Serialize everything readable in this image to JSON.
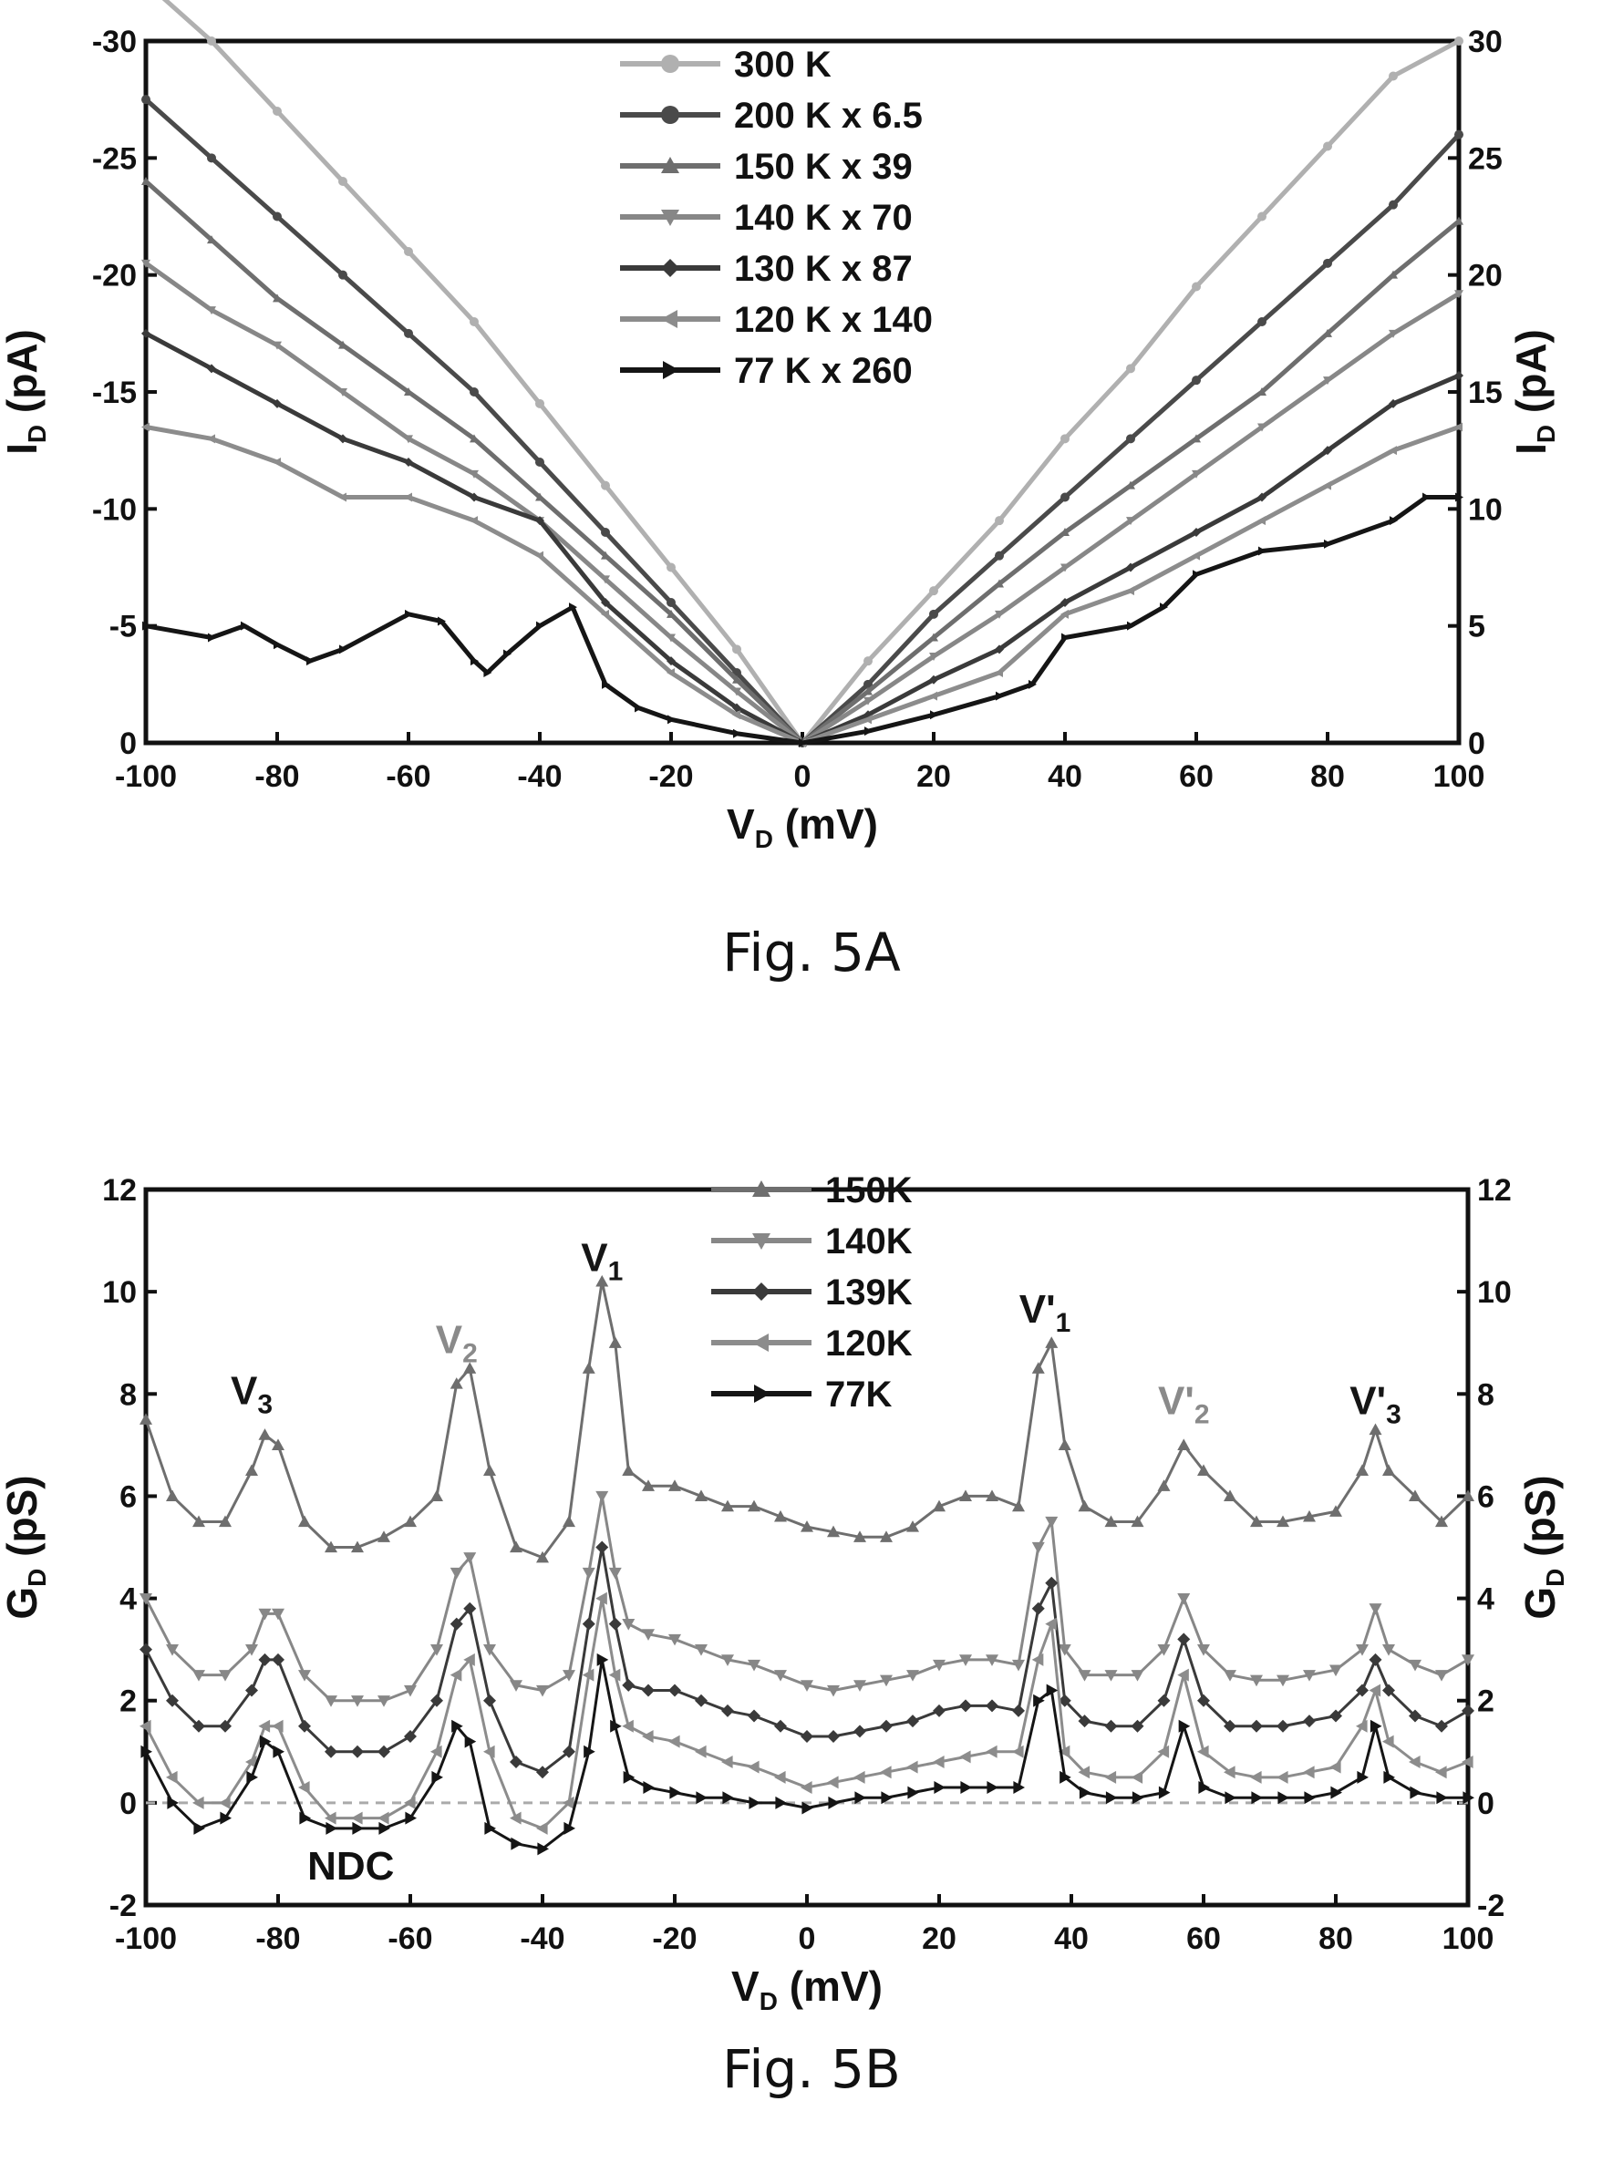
{
  "colors": {
    "c300": "#b0b0b0",
    "c200": "#4a4a4a",
    "c150": "#6e6e6e",
    "c140": "#878787",
    "c130": "#3a3a3a",
    "c120": "#8c8c8c",
    "c77": "#151515",
    "axis": "#111111"
  },
  "chart_data": [
    {
      "type": "line",
      "caption": "Fig. 5A",
      "xlabel": {
        "main": "V",
        "sub": "D",
        "rest": " (mV)"
      },
      "ylabel_left": {
        "main": "I",
        "sub": "D",
        "rest": " (pA)"
      },
      "ylabel_right": {
        "main": "I",
        "sub": "D",
        "rest": " (pA)"
      },
      "xlim": [
        -100,
        100
      ],
      "ylim": [
        0,
        30
      ],
      "xticks": [
        "-100",
        "-80",
        "-60",
        "-40",
        "-20",
        "0",
        "20",
        "40",
        "60",
        "80",
        "100"
      ],
      "yticks_left": [
        "0",
        "-5",
        "-10",
        "-15",
        "-20",
        "-25",
        "-30"
      ],
      "yticks_right": [
        "0",
        "5",
        "10",
        "15",
        "20",
        "25",
        "30"
      ],
      "legend_position": "top-center",
      "series": [
        {
          "name": "300 K",
          "marker": "circle",
          "color": "#b0b0b0",
          "x": [
            -100,
            -90,
            -80,
            -70,
            -60,
            -50,
            -40,
            -30,
            -20,
            -10,
            0,
            10,
            20,
            30,
            40,
            50,
            60,
            70,
            80,
            90,
            100
          ],
          "y": [
            32.5,
            30,
            27,
            24,
            21,
            18,
            14.5,
            11,
            7.5,
            4,
            0,
            3.5,
            6.5,
            9.5,
            13,
            16,
            19.5,
            22.5,
            25.5,
            28.5,
            30
          ]
        },
        {
          "name": "200 K x  6.5",
          "marker": "circle",
          "color": "#4a4a4a",
          "x": [
            -100,
            -90,
            -80,
            -70,
            -60,
            -50,
            -40,
            -30,
            -20,
            -10,
            0,
            10,
            20,
            30,
            40,
            50,
            60,
            70,
            80,
            90,
            100
          ],
          "y": [
            27.5,
            25,
            22.5,
            20,
            17.5,
            15,
            12,
            9,
            6,
            3,
            0,
            2.5,
            5.5,
            8,
            10.5,
            13,
            15.5,
            18,
            20.5,
            23,
            26
          ]
        },
        {
          "name": "150 K x  39",
          "marker": "triangle-up",
          "color": "#6e6e6e",
          "x": [
            -100,
            -90,
            -80,
            -70,
            -60,
            -50,
            -40,
            -30,
            -20,
            -10,
            0,
            10,
            20,
            30,
            40,
            50,
            60,
            70,
            80,
            90,
            100
          ],
          "y": [
            24,
            21.5,
            19,
            17,
            15,
            13,
            10.5,
            8,
            5.5,
            2.7,
            0,
            2.2,
            4.5,
            6.8,
            9,
            11,
            13,
            15,
            17.5,
            20,
            22.3
          ]
        },
        {
          "name": "140 K x  70",
          "marker": "triangle-down",
          "color": "#878787",
          "x": [
            -100,
            -90,
            -80,
            -70,
            -60,
            -50,
            -40,
            -30,
            -20,
            -10,
            0,
            10,
            20,
            30,
            40,
            50,
            60,
            70,
            80,
            90,
            100
          ],
          "y": [
            20.5,
            18.5,
            17,
            15,
            13,
            11.5,
            9.5,
            7,
            4.5,
            2.2,
            0,
            1.8,
            3.7,
            5.5,
            7.5,
            9.5,
            11.5,
            13.5,
            15.5,
            17.5,
            19.2
          ]
        },
        {
          "name": "130 K x  87",
          "marker": "diamond",
          "color": "#3a3a3a",
          "x": [
            -100,
            -90,
            -80,
            -70,
            -60,
            -50,
            -40,
            -30,
            -20,
            -10,
            0,
            10,
            20,
            30,
            40,
            50,
            60,
            70,
            80,
            90,
            100
          ],
          "y": [
            17.5,
            16,
            14.5,
            13,
            12,
            10.5,
            9.5,
            6,
            3.5,
            1.5,
            0,
            1.2,
            2.7,
            4,
            6,
            7.5,
            9,
            10.5,
            12.5,
            14.5,
            15.7
          ]
        },
        {
          "name": "120 K x 140",
          "marker": "triangle-left",
          "color": "#8c8c8c",
          "x": [
            -100,
            -90,
            -80,
            -70,
            -60,
            -50,
            -40,
            -30,
            -20,
            -10,
            0,
            10,
            20,
            30,
            40,
            50,
            60,
            70,
            80,
            90,
            100
          ],
          "y": [
            13.5,
            13,
            12,
            10.5,
            10.5,
            9.5,
            8,
            5.5,
            3,
            1.2,
            0,
            1,
            2,
            3,
            5.5,
            6.5,
            8,
            9.5,
            11,
            12.5,
            13.5
          ]
        },
        {
          "name": "77 K x 260",
          "marker": "triangle-right",
          "color": "#151515",
          "x": [
            -100,
            -90,
            -85,
            -80,
            -75,
            -70,
            -60,
            -55,
            -50,
            -48,
            -45,
            -40,
            -35,
            -30,
            -25,
            -20,
            -10,
            0,
            10,
            20,
            30,
            35,
            40,
            50,
            55,
            60,
            70,
            80,
            90,
            95,
            100
          ],
          "y": [
            5,
            4.5,
            5,
            4.2,
            3.5,
            4,
            5.5,
            5.2,
            3.5,
            3,
            3.8,
            5,
            5.8,
            2.5,
            1.5,
            1,
            0.4,
            0,
            0.5,
            1.2,
            2,
            2.5,
            4.5,
            5,
            5.8,
            7.2,
            8.2,
            8.5,
            9.5,
            10.5,
            10.5
          ]
        }
      ]
    },
    {
      "type": "line",
      "caption": "Fig. 5B",
      "xlabel": {
        "main": "V",
        "sub": "D",
        "rest": " (mV)"
      },
      "ylabel_left": {
        "main": "G",
        "sub": "D",
        "rest": " (pS)"
      },
      "ylabel_right": {
        "main": "G",
        "sub": "D",
        "rest": " (pS)"
      },
      "xlim": [
        -100,
        100
      ],
      "ylim": [
        -2,
        12
      ],
      "xticks": [
        "-100",
        "-80",
        "-60",
        "-40",
        "-20",
        "0",
        "20",
        "40",
        "60",
        "80",
        "100"
      ],
      "yticks": [
        "-2",
        "0",
        "2",
        "4",
        "6",
        "8",
        "10",
        "12"
      ],
      "legend_position": "top-center",
      "series": [
        {
          "name": "150K",
          "marker": "triangle-up",
          "color": "#6e6e6e",
          "x": [
            -100,
            -96,
            -92,
            -88,
            -84,
            -82,
            -80,
            -76,
            -72,
            -68,
            -64,
            -60,
            -56,
            -53,
            -51,
            -48,
            -44,
            -40,
            -36,
            -33,
            -31,
            -29,
            -27,
            -24,
            -20,
            -16,
            -12,
            -8,
            -4,
            0,
            4,
            8,
            12,
            16,
            20,
            24,
            28,
            32,
            35,
            37,
            39,
            42,
            46,
            50,
            54,
            57,
            60,
            64,
            68,
            72,
            76,
            80,
            84,
            86,
            88,
            92,
            96,
            100
          ],
          "y": [
            7.5,
            6,
            5.5,
            5.5,
            6.5,
            7.2,
            7,
            5.5,
            5,
            5,
            5.2,
            5.5,
            6,
            8.2,
            8.5,
            6.5,
            5,
            4.8,
            5.5,
            8.5,
            10.2,
            9,
            6.5,
            6.2,
            6.2,
            6,
            5.8,
            5.8,
            5.6,
            5.4,
            5.3,
            5.2,
            5.2,
            5.4,
            5.8,
            6,
            6,
            5.8,
            8.5,
            9,
            7,
            5.8,
            5.5,
            5.5,
            6.2,
            7,
            6.5,
            6,
            5.5,
            5.5,
            5.6,
            5.7,
            6.5,
            7.3,
            6.5,
            6,
            5.5,
            6
          ]
        },
        {
          "name": "140K",
          "marker": "triangle-down",
          "color": "#878787",
          "x": [
            -100,
            -96,
            -92,
            -88,
            -84,
            -82,
            -80,
            -76,
            -72,
            -68,
            -64,
            -60,
            -56,
            -53,
            -51,
            -48,
            -44,
            -40,
            -36,
            -33,
            -31,
            -29,
            -27,
            -24,
            -20,
            -16,
            -12,
            -8,
            -4,
            0,
            4,
            8,
            12,
            16,
            20,
            24,
            28,
            32,
            35,
            37,
            39,
            42,
            46,
            50,
            54,
            57,
            60,
            64,
            68,
            72,
            76,
            80,
            84,
            86,
            88,
            92,
            96,
            100
          ],
          "y": [
            4,
            3,
            2.5,
            2.5,
            3,
            3.7,
            3.7,
            2.5,
            2,
            2,
            2,
            2.2,
            3,
            4.5,
            4.8,
            3,
            2.3,
            2.2,
            2.5,
            4.5,
            6,
            4.5,
            3.5,
            3.3,
            3.2,
            3,
            2.8,
            2.7,
            2.5,
            2.3,
            2.2,
            2.3,
            2.4,
            2.5,
            2.7,
            2.8,
            2.8,
            2.7,
            5,
            5.5,
            3,
            2.5,
            2.5,
            2.5,
            3,
            4,
            3,
            2.5,
            2.4,
            2.4,
            2.5,
            2.6,
            3,
            3.8,
            3,
            2.7,
            2.5,
            2.8
          ]
        },
        {
          "name": "139K",
          "marker": "diamond",
          "color": "#3a3a3a",
          "x": [
            -100,
            -96,
            -92,
            -88,
            -84,
            -82,
            -80,
            -76,
            -72,
            -68,
            -64,
            -60,
            -56,
            -53,
            -51,
            -48,
            -44,
            -40,
            -36,
            -33,
            -31,
            -29,
            -27,
            -24,
            -20,
            -16,
            -12,
            -8,
            -4,
            0,
            4,
            8,
            12,
            16,
            20,
            24,
            28,
            32,
            35,
            37,
            39,
            42,
            46,
            50,
            54,
            57,
            60,
            64,
            68,
            72,
            76,
            80,
            84,
            86,
            88,
            92,
            96,
            100
          ],
          "y": [
            3,
            2,
            1.5,
            1.5,
            2.2,
            2.8,
            2.8,
            1.5,
            1,
            1,
            1,
            1.3,
            2,
            3.5,
            3.8,
            2,
            0.8,
            0.6,
            1,
            3.5,
            5,
            3.5,
            2.3,
            2.2,
            2.2,
            2,
            1.8,
            1.7,
            1.5,
            1.3,
            1.3,
            1.4,
            1.5,
            1.6,
            1.8,
            1.9,
            1.9,
            1.8,
            3.8,
            4.3,
            2,
            1.6,
            1.5,
            1.5,
            2,
            3.2,
            2,
            1.5,
            1.5,
            1.5,
            1.6,
            1.7,
            2.2,
            2.8,
            2.2,
            1.7,
            1.5,
            1.8
          ]
        },
        {
          "name": "120K",
          "marker": "triangle-left",
          "color": "#8c8c8c",
          "x": [
            -100,
            -96,
            -92,
            -88,
            -84,
            -82,
            -80,
            -76,
            -72,
            -68,
            -64,
            -60,
            -56,
            -53,
            -51,
            -48,
            -44,
            -40,
            -36,
            -33,
            -31,
            -29,
            -27,
            -24,
            -20,
            -16,
            -12,
            -8,
            -4,
            0,
            4,
            8,
            12,
            16,
            20,
            24,
            28,
            32,
            35,
            37,
            39,
            42,
            46,
            50,
            54,
            57,
            60,
            64,
            68,
            72,
            76,
            80,
            84,
            86,
            88,
            92,
            96,
            100
          ],
          "y": [
            1.5,
            0.5,
            0,
            0,
            0.8,
            1.5,
            1.5,
            0.3,
            -0.3,
            -0.3,
            -0.3,
            0,
            1,
            2.5,
            2.8,
            1,
            -0.3,
            -0.5,
            0,
            2.5,
            4,
            2.5,
            1.5,
            1.3,
            1.2,
            1,
            0.8,
            0.7,
            0.5,
            0.3,
            0.4,
            0.5,
            0.6,
            0.7,
            0.8,
            0.9,
            1,
            1,
            2.8,
            3.5,
            1,
            0.6,
            0.5,
            0.5,
            1,
            2.5,
            1,
            0.6,
            0.5,
            0.5,
            0.6,
            0.7,
            1.5,
            2.2,
            1.2,
            0.8,
            0.6,
            0.8
          ]
        },
        {
          "name": "77K",
          "marker": "triangle-right",
          "color": "#151515",
          "x": [
            -100,
            -96,
            -92,
            -88,
            -84,
            -82,
            -80,
            -76,
            -72,
            -68,
            -64,
            -60,
            -56,
            -53,
            -51,
            -48,
            -44,
            -40,
            -36,
            -33,
            -31,
            -29,
            -27,
            -24,
            -20,
            -16,
            -12,
            -8,
            -4,
            0,
            4,
            8,
            12,
            16,
            20,
            24,
            28,
            32,
            35,
            37,
            39,
            42,
            46,
            50,
            54,
            57,
            60,
            64,
            68,
            72,
            76,
            80,
            84,
            86,
            88,
            92,
            96,
            100
          ],
          "y": [
            1,
            0,
            -0.5,
            -0.3,
            0.5,
            1.2,
            1,
            -0.3,
            -0.5,
            -0.5,
            -0.5,
            -0.3,
            0.5,
            1.5,
            1.2,
            -0.5,
            -0.8,
            -0.9,
            -0.5,
            1,
            2.8,
            1.5,
            0.5,
            0.3,
            0.2,
            0.1,
            0.1,
            0,
            0,
            -0.1,
            0,
            0.1,
            0.1,
            0.2,
            0.3,
            0.3,
            0.3,
            0.3,
            2,
            2.2,
            0.5,
            0.2,
            0.1,
            0.1,
            0.2,
            1.5,
            0.3,
            0.1,
            0.1,
            0.1,
            0.1,
            0.2,
            0.5,
            1.5,
            0.5,
            0.2,
            0.1,
            0.1
          ]
        }
      ],
      "annotations": [
        {
          "text": "V",
          "sub": "3",
          "x": -84,
          "y": 7.8,
          "color": "#151515"
        },
        {
          "text": "V",
          "sub": "2",
          "x": -53,
          "y": 8.8,
          "color": "#8a8a8a"
        },
        {
          "text": "V",
          "sub": "1",
          "x": -31,
          "y": 10.4,
          "color": "#151515"
        },
        {
          "text": "V'",
          "sub": "1",
          "x": 36,
          "y": 9.4,
          "color": "#151515"
        },
        {
          "text": "V'",
          "sub": "2",
          "x": 57,
          "y": 7.6,
          "color": "#8a8a8a"
        },
        {
          "text": "V'",
          "sub": "3",
          "x": 86,
          "y": 7.6,
          "color": "#151515"
        },
        {
          "text": "NDC",
          "sub": "",
          "x": -69,
          "y": -1.5,
          "color": "#111111"
        }
      ]
    }
  ]
}
